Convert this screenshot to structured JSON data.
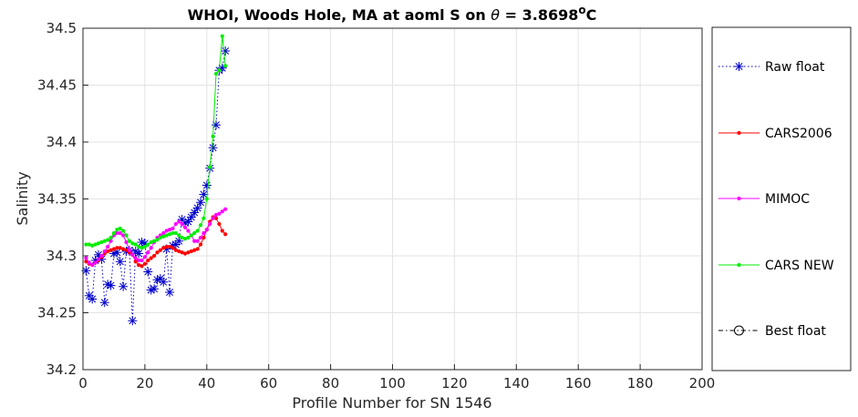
{
  "chart_data": {
    "type": "line",
    "title": {
      "main": "WHOI, Woods Hole, MA at aoml S on ",
      "theta": "θ",
      "eq": " = 3.8698",
      "sup": "o",
      "unit": "C"
    },
    "xlabel": "Profile Number for SN 1546",
    "ylabel": "Salinity",
    "xlim": [
      0,
      200
    ],
    "ylim": [
      34.2,
      34.5
    ],
    "xticks": [
      "0",
      "20",
      "40",
      "60",
      "80",
      "100",
      "120",
      "140",
      "160",
      "180",
      "200"
    ],
    "yticks": [
      "34.2",
      "34.25",
      "34.3",
      "34.35",
      "34.4",
      "34.45",
      "34.5"
    ],
    "grid": true,
    "legend_position": "outside-right",
    "series": [
      {
        "name": "Raw float",
        "color": "#0000cc",
        "line_style": "dotted",
        "marker": "asterisk",
        "x": [
          1,
          2,
          3,
          4,
          5,
          6,
          7,
          8,
          9,
          10,
          11,
          12,
          13,
          14,
          15,
          16,
          17,
          18,
          19,
          20,
          21,
          22,
          23,
          24,
          25,
          26,
          27,
          28,
          29,
          30,
          31,
          32,
          33,
          34,
          35,
          36,
          37,
          38,
          39,
          40,
          41,
          42,
          43,
          44,
          45,
          46
        ],
        "y": [
          34.287,
          34.265,
          34.262,
          34.296,
          34.301,
          34.297,
          34.259,
          34.275,
          34.274,
          34.302,
          34.303,
          34.295,
          34.273,
          34.304,
          34.305,
          34.243,
          34.304,
          34.302,
          34.312,
          34.311,
          34.286,
          34.27,
          34.271,
          34.279,
          34.28,
          34.277,
          34.306,
          34.268,
          34.309,
          34.31,
          34.313,
          34.332,
          34.329,
          34.33,
          34.334,
          34.338,
          34.342,
          34.347,
          34.354,
          34.362,
          34.377,
          34.395,
          34.415,
          34.463,
          34.465,
          34.48
        ]
      },
      {
        "name": "CARS2006",
        "color": "#ff0000",
        "line_style": "solid",
        "marker": "dot",
        "x": [
          1,
          2,
          3,
          4,
          5,
          6,
          7,
          8,
          9,
          10,
          11,
          12,
          13,
          14,
          15,
          16,
          17,
          18,
          19,
          20,
          21,
          22,
          23,
          24,
          25,
          26,
          27,
          28,
          29,
          30,
          31,
          32,
          33,
          34,
          35,
          36,
          37,
          38,
          39,
          40,
          41,
          42,
          43,
          44,
          45,
          46
        ],
        "y": [
          34.295,
          34.293,
          34.292,
          34.294,
          34.296,
          34.299,
          34.302,
          34.304,
          34.305,
          34.306,
          34.307,
          34.307,
          34.306,
          34.305,
          34.303,
          34.301,
          34.295,
          34.292,
          34.291,
          34.293,
          34.296,
          34.298,
          34.3,
          34.303,
          34.305,
          34.307,
          34.308,
          34.308,
          34.307,
          34.305,
          34.304,
          34.303,
          34.302,
          34.303,
          34.304,
          34.305,
          34.306,
          34.31,
          34.316,
          34.323,
          34.33,
          34.334,
          34.333,
          34.328,
          34.322,
          34.319
        ]
      },
      {
        "name": "MIMOC",
        "color": "#ff00ff",
        "line_style": "solid",
        "marker": "dot",
        "x": [
          1,
          2,
          3,
          4,
          5,
          6,
          7,
          8,
          9,
          10,
          11,
          12,
          13,
          14,
          15,
          16,
          17,
          18,
          19,
          20,
          21,
          22,
          23,
          24,
          25,
          26,
          27,
          28,
          29,
          30,
          31,
          32,
          33,
          34,
          35,
          36,
          37,
          38,
          39,
          40,
          41,
          42,
          43,
          44,
          45,
          46
        ],
        "y": [
          34.298,
          34.294,
          34.292,
          34.294,
          34.297,
          34.3,
          34.304,
          34.308,
          34.313,
          34.318,
          34.32,
          34.32,
          34.318,
          34.312,
          34.305,
          34.301,
          34.298,
          34.296,
          34.296,
          34.299,
          34.303,
          34.307,
          34.312,
          34.316,
          34.318,
          34.32,
          34.322,
          34.323,
          34.324,
          34.328,
          34.33,
          34.328,
          34.325,
          34.322,
          34.318,
          34.313,
          34.313,
          34.316,
          34.32,
          34.323,
          34.328,
          34.333,
          34.336,
          34.337,
          34.339,
          34.341
        ]
      },
      {
        "name": "CARS NEW",
        "color": "#00ee00",
        "line_style": "solid",
        "marker": "dot",
        "x": [
          1,
          2,
          3,
          4,
          5,
          6,
          7,
          8,
          9,
          10,
          11,
          12,
          13,
          14,
          15,
          16,
          17,
          18,
          19,
          20,
          21,
          22,
          23,
          24,
          25,
          26,
          27,
          28,
          29,
          30,
          31,
          32,
          33,
          34,
          35,
          36,
          37,
          38,
          39,
          40,
          41,
          42,
          43,
          44,
          45,
          46
        ],
        "y": [
          34.31,
          34.31,
          34.309,
          34.31,
          34.311,
          34.312,
          34.313,
          34.314,
          34.316,
          34.32,
          34.323,
          34.324,
          34.322,
          34.318,
          34.313,
          34.311,
          34.31,
          34.308,
          34.307,
          34.308,
          34.31,
          34.312,
          34.313,
          34.314,
          34.316,
          34.317,
          34.318,
          34.319,
          34.32,
          34.32,
          34.318,
          34.316,
          34.315,
          34.316,
          34.318,
          34.32,
          34.322,
          34.327,
          34.333,
          34.35,
          34.378,
          34.405,
          34.46,
          34.463,
          34.493,
          34.467
        ]
      },
      {
        "name": "Best float",
        "color": "#000000",
        "line_style": "dashdot",
        "marker": "circle",
        "x": [],
        "y": []
      }
    ]
  }
}
